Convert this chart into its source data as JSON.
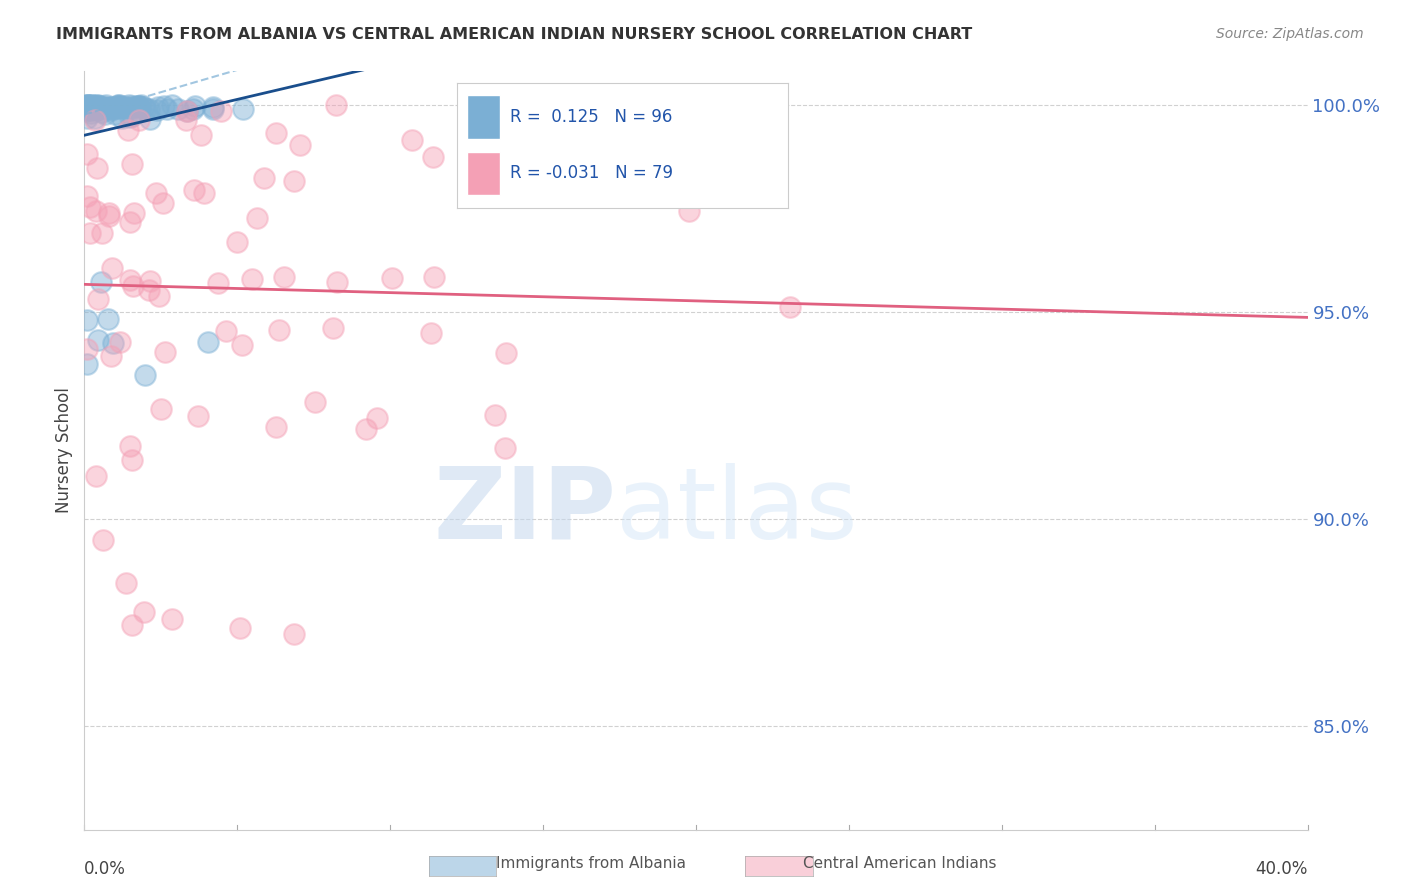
{
  "title": "IMMIGRANTS FROM ALBANIA VS CENTRAL AMERICAN INDIAN NURSERY SCHOOL CORRELATION CHART",
  "source": "Source: ZipAtlas.com",
  "ylabel": "Nursery School",
  "ylabel_right_ticks": [
    85.0,
    90.0,
    95.0,
    100.0
  ],
  "albania_R": 0.125,
  "albania_N": 96,
  "central_american_R": -0.031,
  "central_american_N": 79,
  "albania_color": "#7bafd4",
  "central_american_color": "#f4a0b5",
  "albania_line_color": "#1a4e8c",
  "central_american_line_color": "#e06080",
  "albania_band_color": "#7bafd4",
  "watermark_zip": "ZIP",
  "watermark_atlas": "atlas",
  "background_color": "#ffffff",
  "grid_color": "#cccccc",
  "right_tick_color": "#4472c4",
  "x_min": 0.0,
  "x_max": 0.4,
  "y_min": 0.825,
  "y_max": 1.008
}
